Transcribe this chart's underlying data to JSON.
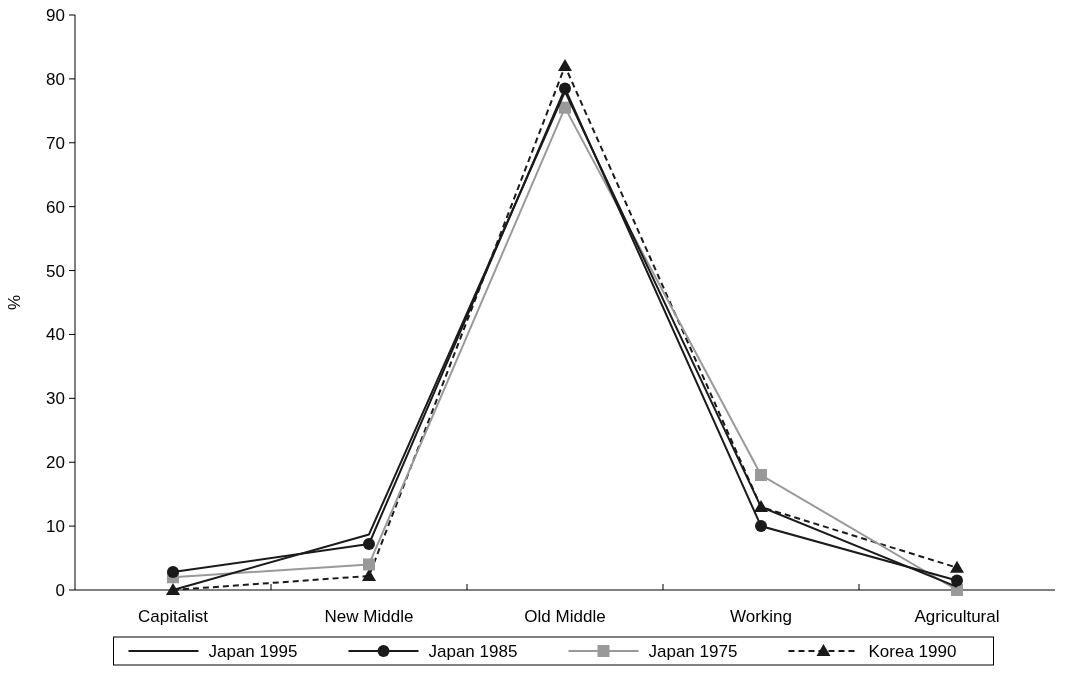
{
  "chart_data": {
    "type": "line",
    "ylabel": "%",
    "categories": [
      "Capitalist",
      "New Middle",
      "Old Middle",
      "Working",
      "Agricultural"
    ],
    "ylim": [
      0,
      90
    ],
    "yticks": [
      0,
      10,
      20,
      30,
      40,
      50,
      60,
      70,
      80,
      90
    ],
    "grid": false,
    "legend": "bottom",
    "series": [
      {
        "name": "Japan 1995",
        "color": "#1a1a1a",
        "values": [
          0,
          8.7,
          78,
          13,
          0.5
        ],
        "marker": "none",
        "line_style": "solid"
      },
      {
        "name": "Japan 1985",
        "color": "#1a1a1a",
        "values": [
          2.8,
          7.2,
          78.5,
          10,
          1.5
        ],
        "marker": "circle",
        "line_style": "solid"
      },
      {
        "name": "Japan 1975",
        "color": "#999999",
        "values": [
          2,
          4,
          75.5,
          18,
          0
        ],
        "marker": "square",
        "line_style": "solid"
      },
      {
        "name": "Korea 1990",
        "color": "#1a1a1a",
        "values": [
          0,
          2.2,
          82,
          13,
          3.5
        ],
        "marker": "triangle",
        "line_style": "dashed"
      }
    ]
  }
}
